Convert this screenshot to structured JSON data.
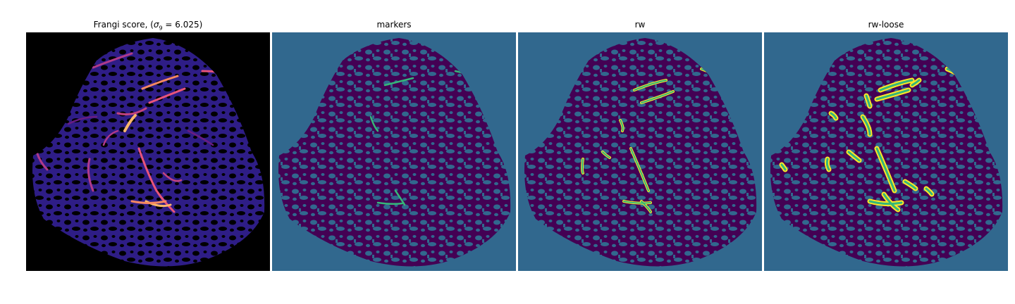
{
  "panels": [
    {
      "title_prefix": "Frangi score, (",
      "title_sigma": "σ",
      "title_sub": "9",
      "title_suffix": " = 6.025)",
      "colormap": "magma"
    },
    {
      "title": "markers",
      "colormap": "viridis"
    },
    {
      "title": "rw",
      "colormap": "viridis"
    },
    {
      "title": "rw-loose",
      "colormap": "viridis"
    }
  ],
  "colors": {
    "frangi_background": "#000000",
    "frangi_tissue": "#2a1a7a",
    "frangi_highlight": "#fcfdbf",
    "viridis_low": "#440154",
    "viridis_mid": "#31688e",
    "viridis_green": "#35b779",
    "viridis_high": "#fde725"
  }
}
